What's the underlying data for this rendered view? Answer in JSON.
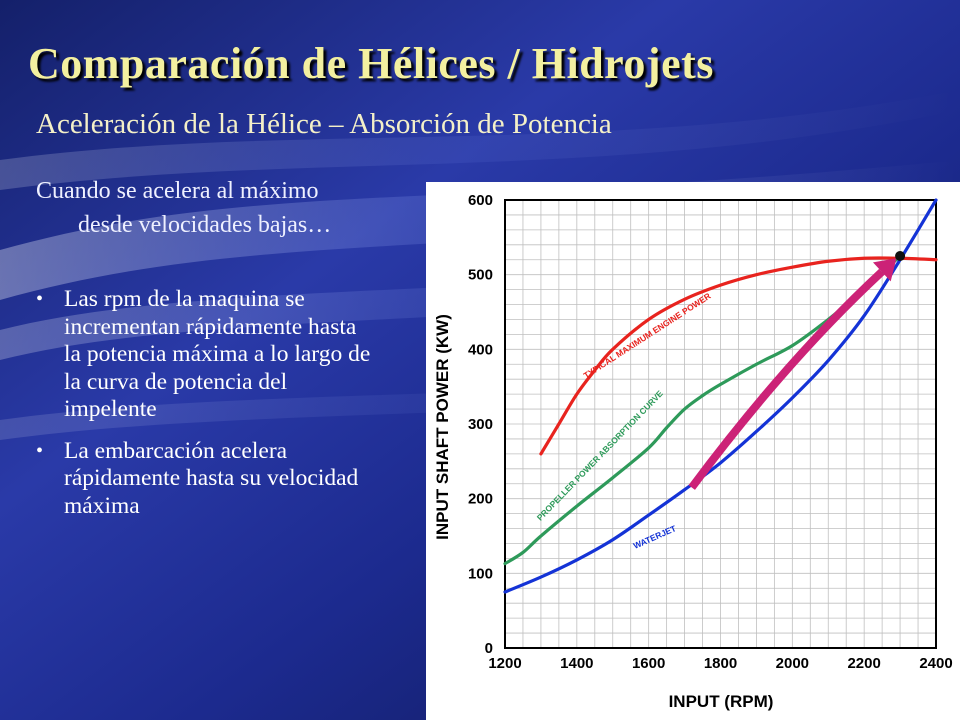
{
  "slide": {
    "title": "Comparación de Hélices / Hidrojets",
    "subtitle": "Aceleración de la Hélice – Absorción de Potencia",
    "intro_line1": "Cuando se acelera al máximo",
    "intro_line2": "desde velocidades bajas…",
    "bullets": [
      "Las rpm de la maquina se incrementan rápidamente hasta la potencia máxima a lo largo de la curva de potencia del impelente",
      "La embarcación acelera rápidamente hasta su velocidad máxima"
    ]
  },
  "chart_data": {
    "type": "line",
    "xlabel": "INPUT (RPM)",
    "ylabel": "INPUT SHAFT POWER (KW)",
    "xlim": [
      1200,
      2400
    ],
    "ylim": [
      0,
      600
    ],
    "xticks": [
      1200,
      1400,
      1600,
      1800,
      2000,
      2200,
      2400
    ],
    "yticks": [
      0,
      100,
      200,
      300,
      400,
      500,
      600
    ],
    "grid": true,
    "series": [
      {
        "name": "TYPICAL MAXIMUM ENGINE POWER",
        "color": "#e8231e",
        "x": [
          1300,
          1350,
          1400,
          1450,
          1500,
          1600,
          1700,
          1800,
          1900,
          2000,
          2100,
          2200,
          2300,
          2400
        ],
        "y": [
          260,
          300,
          340,
          372,
          400,
          440,
          467,
          486,
          500,
          510,
          518,
          522,
          522,
          520
        ]
      },
      {
        "name": "PROPELLER POWER ABSORPTION CURVE",
        "color": "#2e9a5a",
        "x": [
          1200,
          1250,
          1300,
          1400,
          1500,
          1600,
          1650,
          1700,
          1750,
          1800,
          1900,
          2000,
          2100,
          2200,
          2300
        ],
        "y": [
          113,
          128,
          150,
          190,
          228,
          268,
          295,
          320,
          338,
          353,
          380,
          405,
          440,
          480,
          525
        ]
      },
      {
        "name": "WATERJET",
        "color": "#1433d6",
        "x": [
          1200,
          1300,
          1400,
          1500,
          1600,
          1700,
          1800,
          1900,
          2000,
          2100,
          2200,
          2300,
          2400
        ],
        "y": [
          75,
          95,
          118,
          145,
          178,
          212,
          248,
          290,
          335,
          385,
          445,
          520,
          600
        ]
      }
    ],
    "annotations": [
      {
        "type": "arrow",
        "color": "#cc2277",
        "from": [
          1720,
          215
        ],
        "to": [
          2290,
          522
        ]
      },
      {
        "type": "point",
        "color": "#111111",
        "x": 2300,
        "y": 525
      }
    ]
  }
}
